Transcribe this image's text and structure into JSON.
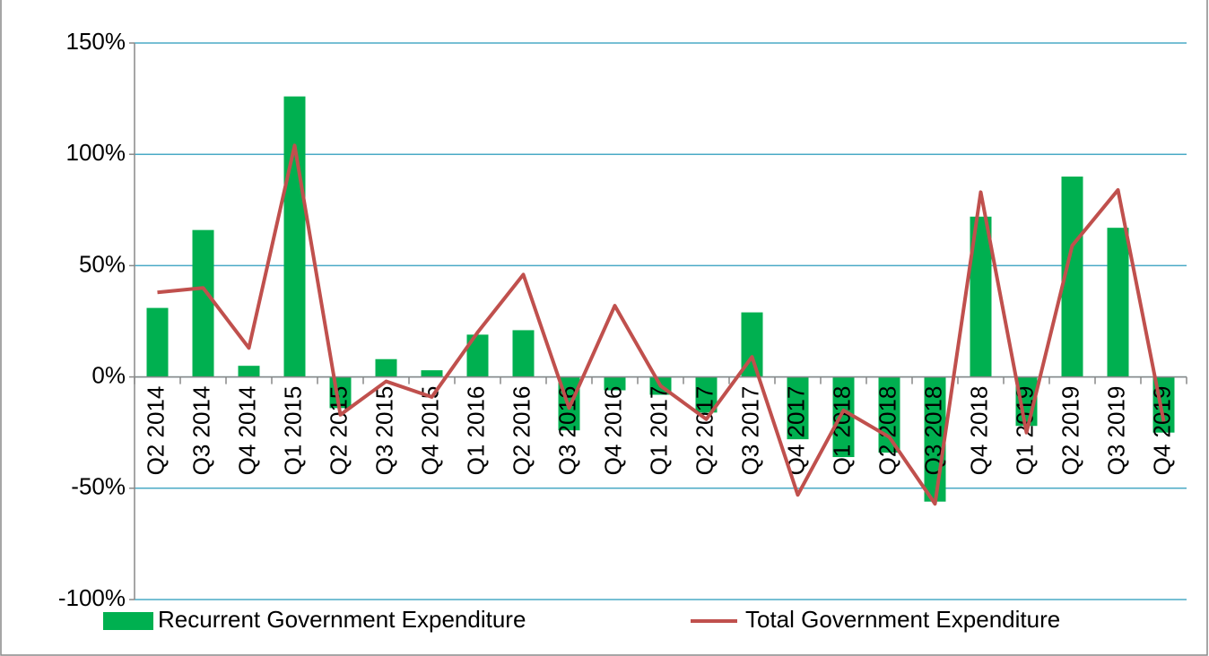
{
  "chart_data": {
    "type": "bar-line",
    "categories": [
      "Q2 2014",
      "Q3 2014",
      "Q4 2014",
      "Q1 2015",
      "Q2 2015",
      "Q3 2015",
      "Q4 2015",
      "Q1 2016",
      "Q2 2016",
      "Q3 2016",
      "Q4 2016",
      "Q1 2017",
      "Q2 2017",
      "Q3 2017",
      "Q4 2017",
      "Q1 2018",
      "Q2 2018",
      "Q3 2018",
      "Q4 2018",
      "Q1 2019",
      "Q2 2019",
      "Q3 2019",
      "Q4 2019"
    ],
    "series": [
      {
        "name": "Recurrent Government Expenditure",
        "type": "bar",
        "color": "#00b050",
        "values": [
          31,
          66,
          5,
          126,
          -14,
          8,
          3,
          19,
          21,
          -24,
          -6,
          -8,
          -16,
          29,
          -28,
          -36,
          -34,
          -56,
          72,
          -22,
          90,
          67,
          -25
        ]
      },
      {
        "name": "Total Government Expenditure",
        "type": "line",
        "color": "#c0504d",
        "values": [
          38,
          40,
          13,
          104,
          -17,
          -2,
          -9,
          20,
          46,
          -14,
          32,
          -4,
          -19,
          9,
          -53,
          -15,
          -27,
          -57,
          83,
          -25,
          59,
          84,
          -20
        ]
      }
    ],
    "ylim": [
      -100,
      150
    ],
    "yticks": [
      {
        "value": -100,
        "label": "-100%"
      },
      {
        "value": -50,
        "label": "-50%"
      },
      {
        "value": 0,
        "label": "0%"
      },
      {
        "value": 50,
        "label": "50%"
      },
      {
        "value": 100,
        "label": "100%"
      },
      {
        "value": 150,
        "label": "150%"
      }
    ],
    "grid": true,
    "legend": "bottom"
  }
}
